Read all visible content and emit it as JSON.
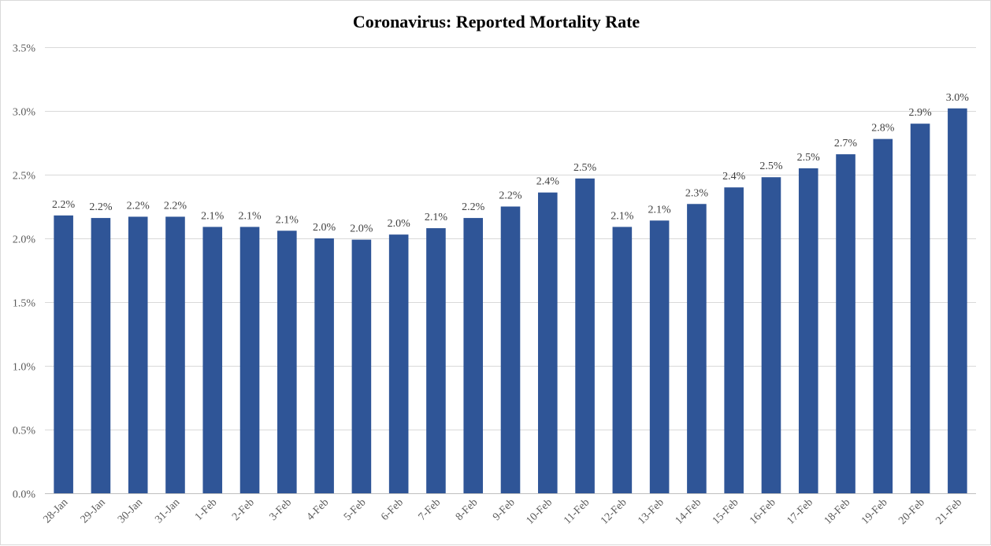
{
  "chart_data": {
    "type": "bar",
    "title": "Coronavirus: Reported Mortality Rate",
    "xlabel": "",
    "ylabel": "",
    "ylim": [
      0,
      3.5
    ],
    "y_ticks": [
      "0.0%",
      "0.5%",
      "1.0%",
      "1.5%",
      "2.0%",
      "2.5%",
      "3.0%",
      "3.5%"
    ],
    "y_tick_values": [
      0,
      0.5,
      1.0,
      1.5,
      2.0,
      2.5,
      3.0,
      3.5
    ],
    "grid": true,
    "legend": "none",
    "bar_color": "#2f5597",
    "categories": [
      "28-Jan",
      "29-Jan",
      "30-Jan",
      "31-Jan",
      "1-Feb",
      "2-Feb",
      "3-Feb",
      "4-Feb",
      "5-Feb",
      "6-Feb",
      "7-Feb",
      "8-Feb",
      "9-Feb",
      "10-Feb",
      "11-Feb",
      "12-Feb",
      "13-Feb",
      "14-Feb",
      "15-Feb",
      "16-Feb",
      "17-Feb",
      "18-Feb",
      "19-Feb",
      "20-Feb",
      "21-Feb"
    ],
    "values": [
      2.18,
      2.16,
      2.17,
      2.17,
      2.09,
      2.09,
      2.06,
      2.0,
      1.99,
      2.03,
      2.08,
      2.16,
      2.25,
      2.36,
      2.47,
      2.09,
      2.14,
      2.27,
      2.4,
      2.48,
      2.55,
      2.66,
      2.78,
      2.9,
      3.02
    ],
    "data_labels": [
      "2.2%",
      "2.2%",
      "2.2%",
      "2.2%",
      "2.1%",
      "2.1%",
      "2.1%",
      "2.0%",
      "2.0%",
      "2.0%",
      "2.1%",
      "2.2%",
      "2.2%",
      "2.4%",
      "2.5%",
      "2.1%",
      "2.1%",
      "2.3%",
      "2.4%",
      "2.5%",
      "2.5%",
      "2.7%",
      "2.8%",
      "2.9%",
      "3.0%"
    ]
  }
}
